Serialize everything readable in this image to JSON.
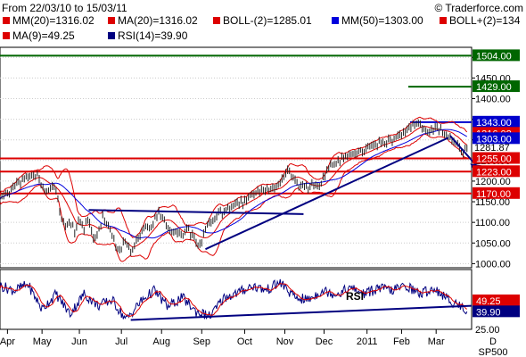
{
  "header": {
    "range": "From 22/03/10 to 15/03/11",
    "copyright": "© Traderforce.com"
  },
  "legend": [
    {
      "label": "MM(20)=1316.02",
      "color": "#dd0000"
    },
    {
      "label": "MA(20)=1316.02",
      "color": "#dd0000"
    },
    {
      "label": "BOLL-(2)=1285.01",
      "color": "#dd0000"
    },
    {
      "label": "MM(50)=1303.00",
      "color": "#0000dd"
    },
    {
      "label": "BOLL+(2)=134",
      "color": "#dd0000"
    },
    {
      "label": "MA(9)=49.25",
      "color": "#dd0000"
    },
    {
      "label": "RSI(14)=39.90",
      "color": "#000080"
    }
  ],
  "symbol": "SP500",
  "axis_unit": "D",
  "chart_data": [
    {
      "type": "line",
      "title": "",
      "ylim": [
        990,
        1520
      ],
      "y_ticks": [
        1000,
        1050,
        1100,
        1150,
        1200,
        1250,
        1300,
        1350,
        1400,
        1450,
        1500
      ],
      "x_ticks": [
        "Apr",
        "May",
        "Jun",
        "Jul",
        "Aug",
        "Sep",
        "Oct",
        "Nov",
        "Dec",
        "2011",
        "Feb",
        "Mar"
      ],
      "x_tick_index": [
        8,
        45,
        85,
        130,
        173,
        216,
        262,
        305,
        347,
        393,
        430,
        467
      ],
      "n_bars": 505,
      "price_anchors": [
        [
          0,
          1160
        ],
        [
          10,
          1175
        ],
        [
          20,
          1195
        ],
        [
          30,
          1210
        ],
        [
          40,
          1215
        ],
        [
          45,
          1185
        ],
        [
          50,
          1170
        ],
        [
          55,
          1195
        ],
        [
          60,
          1175
        ],
        [
          65,
          1120
        ],
        [
          70,
          1090
        ],
        [
          75,
          1100
        ],
        [
          80,
          1080
        ],
        [
          85,
          1105
        ],
        [
          90,
          1085
        ],
        [
          95,
          1110
        ],
        [
          100,
          1060
        ],
        [
          105,
          1075
        ],
        [
          110,
          1110
        ],
        [
          115,
          1090
        ],
        [
          120,
          1070
        ],
        [
          125,
          1030
        ],
        [
          130,
          1040
        ],
        [
          135,
          1060
        ],
        [
          140,
          1030
        ],
        [
          145,
          1055
        ],
        [
          150,
          1070
        ],
        [
          155,
          1095
        ],
        [
          160,
          1085
        ],
        [
          165,
          1105
        ],
        [
          170,
          1125
        ],
        [
          175,
          1105
        ],
        [
          180,
          1090
        ],
        [
          185,
          1070
        ],
        [
          190,
          1080
        ],
        [
          195,
          1060
        ],
        [
          200,
          1085
        ],
        [
          205,
          1070
        ],
        [
          210,
          1055
        ],
        [
          215,
          1045
        ],
        [
          220,
          1080
        ],
        [
          225,
          1100
        ],
        [
          230,
          1110
        ],
        [
          235,
          1125
        ],
        [
          240,
          1120
        ],
        [
          245,
          1135
        ],
        [
          250,
          1145
        ],
        [
          255,
          1150
        ],
        [
          260,
          1145
        ],
        [
          265,
          1160
        ],
        [
          270,
          1170
        ],
        [
          275,
          1175
        ],
        [
          280,
          1180
        ],
        [
          285,
          1175
        ],
        [
          290,
          1180
        ],
        [
          295,
          1185
        ],
        [
          300,
          1195
        ],
        [
          305,
          1215
        ],
        [
          310,
          1225
        ],
        [
          315,
          1200
        ],
        [
          320,
          1190
        ],
        [
          325,
          1195
        ],
        [
          330,
          1180
        ],
        [
          335,
          1195
        ],
        [
          340,
          1185
        ],
        [
          345,
          1200
        ],
        [
          350,
          1225
        ],
        [
          355,
          1240
        ],
        [
          360,
          1245
        ],
        [
          365,
          1250
        ],
        [
          370,
          1255
        ],
        [
          375,
          1260
        ],
        [
          380,
          1265
        ],
        [
          385,
          1270
        ],
        [
          390,
          1275
        ],
        [
          395,
          1280
        ],
        [
          400,
          1285
        ],
        [
          405,
          1290
        ],
        [
          410,
          1295
        ],
        [
          415,
          1295
        ],
        [
          420,
          1300
        ],
        [
          425,
          1305
        ],
        [
          430,
          1310
        ],
        [
          435,
          1320
        ],
        [
          440,
          1330
        ],
        [
          445,
          1340
        ],
        [
          450,
          1335
        ],
        [
          455,
          1325
        ],
        [
          460,
          1320
        ],
        [
          465,
          1330
        ],
        [
          470,
          1325
        ],
        [
          475,
          1320
        ],
        [
          480,
          1305
        ],
        [
          485,
          1300
        ],
        [
          490,
          1295
        ],
        [
          495,
          1270
        ],
        [
          500,
          1282
        ]
      ],
      "support_lines": [
        1504,
        1429,
        1343,
        1255,
        1223,
        1170
      ],
      "horizontal_levels": [
        {
          "value": 1504,
          "label": "1504.00",
          "color": "#006600"
        },
        {
          "value": 1429,
          "label": "1429.00",
          "color": "#006600"
        },
        {
          "value": 1343,
          "label": "1343.00",
          "color": "#0000cc"
        },
        {
          "value": 1255,
          "label": "1255.00",
          "color": "#dd0000"
        },
        {
          "value": 1223,
          "label": "1223.00",
          "color": "#dd0000"
        },
        {
          "value": 1170,
          "label": "1170.00",
          "color": "#dd0000"
        }
      ],
      "value_tags": [
        {
          "value": 1316.02,
          "label": "1316.02",
          "color": "#dd0000"
        },
        {
          "value": 1303.0,
          "label": "1303.00",
          "color": "#0000cc"
        },
        {
          "value": 1281.87,
          "label": "1281.87",
          "color": "#000000"
        }
      ],
      "trend_lines": [
        {
          "from": [
            220,
            1035
          ],
          "to": [
            480,
            1305
          ],
          "color": "#000080"
        },
        {
          "from": [
            95,
            1130
          ],
          "to": [
            325,
            1120
          ],
          "color": "#000080"
        }
      ],
      "projection_arrow": {
        "from": [
          482,
          1310
        ],
        "to": [
          510,
          1225
        ],
        "color": "#000080"
      }
    },
    {
      "type": "line",
      "title": "RSI",
      "ylim": [
        25,
        75
      ],
      "y_ticks": [
        25
      ],
      "rsi_anchors": [
        [
          0,
          62
        ],
        [
          15,
          58
        ],
        [
          30,
          63
        ],
        [
          45,
          42
        ],
        [
          60,
          55
        ],
        [
          75,
          38
        ],
        [
          90,
          55
        ],
        [
          105,
          45
        ],
        [
          120,
          50
        ],
        [
          135,
          33
        ],
        [
          150,
          48
        ],
        [
          165,
          58
        ],
        [
          180,
          44
        ],
        [
          195,
          52
        ],
        [
          210,
          40
        ],
        [
          225,
          36
        ],
        [
          240,
          52
        ],
        [
          255,
          56
        ],
        [
          270,
          62
        ],
        [
          285,
          58
        ],
        [
          300,
          65
        ],
        [
          315,
          52
        ],
        [
          330,
          50
        ],
        [
          345,
          58
        ],
        [
          360,
          55
        ],
        [
          375,
          60
        ],
        [
          390,
          55
        ],
        [
          405,
          60
        ],
        [
          420,
          58
        ],
        [
          435,
          62
        ],
        [
          450,
          55
        ],
        [
          465,
          60
        ],
        [
          480,
          50
        ],
        [
          495,
          44
        ],
        [
          500,
          40
        ]
      ],
      "support_line": {
        "from": [
          140,
          33
        ],
        "to": [
          505,
          45
        ]
      },
      "value_tags": [
        {
          "value": 49.25,
          "label": "49.25",
          "color": "#dd0000"
        },
        {
          "value": 39.9,
          "label": "39.90",
          "color": "#000080"
        }
      ]
    }
  ]
}
